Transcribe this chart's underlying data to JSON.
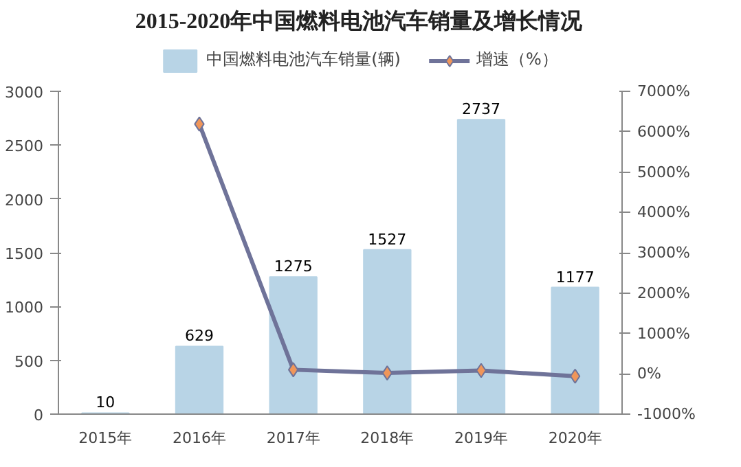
{
  "chart_data": {
    "type": "bar",
    "title": "2015-2020年中国燃料电池汽车销量及增长情况",
    "categories": [
      "2015年",
      "2016年",
      "2017年",
      "2018年",
      "2019年",
      "2020年"
    ],
    "series": [
      {
        "name": "中国燃料电池汽车销量(辆)",
        "color": "#b8d4e6",
        "values": [
          10,
          629,
          1275,
          1527,
          2737,
          1177
        ],
        "value_labels": [
          "10",
          "629",
          "1275",
          "1527",
          "2737",
          "1177"
        ]
      },
      {
        "name": "增速（%）",
        "type": "line",
        "axis": "y2",
        "color": "#6f7399",
        "colors": [
          null,
          "#f0965a",
          "#f0965a",
          "#f0965a",
          "#f0965a",
          "#f0965a"
        ],
        "values": [
          null,
          6190,
          100,
          20,
          80,
          -60
        ]
      }
    ],
    "ylim": [
      0,
      3000
    ],
    "yticks": [
      0,
      500,
      1000,
      1500,
      2000,
      2500,
      3000
    ],
    "y2lim": [
      -1000,
      7000
    ],
    "y2ticks": [
      {
        "value": -1000,
        "label": "-1000%"
      },
      {
        "value": 0,
        "label": "0%"
      },
      {
        "value": 1000,
        "label": "1000%"
      },
      {
        "value": 2000,
        "label": "2000%"
      },
      {
        "value": 3000,
        "label": "3000%"
      },
      {
        "value": 4000,
        "label": "4000%"
      },
      {
        "value": 5000,
        "label": "5000%"
      },
      {
        "value": 6000,
        "label": "6000%"
      },
      {
        "value": 7000,
        "label": "7000%"
      }
    ],
    "legend": "top",
    "marker": "diamond",
    "grid": false
  }
}
